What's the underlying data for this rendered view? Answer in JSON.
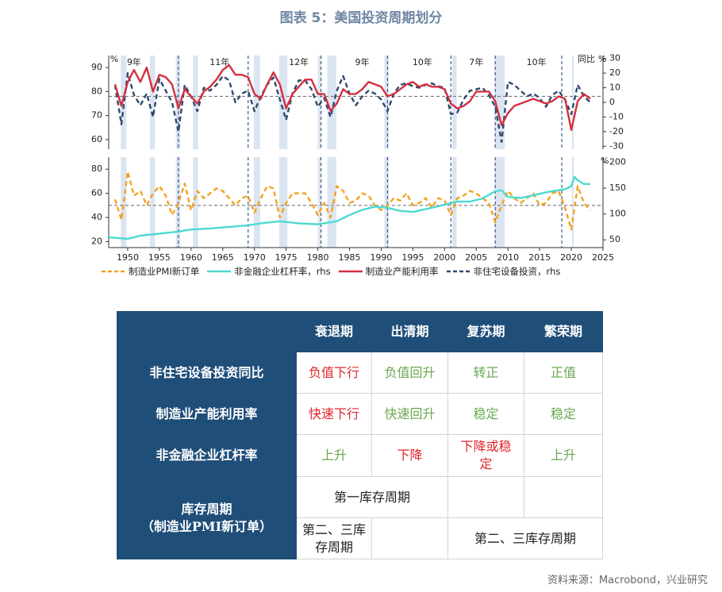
{
  "figure": {
    "title": "图表 5：美国投资周期划分",
    "source": "资料来源：Macrobond，兴业研究"
  },
  "legend": [
    {
      "label": "制造业PMI新订单",
      "color": "#f4a21d",
      "style": "dashed"
    },
    {
      "label": "非金融企业杠杆率，rhs",
      "color": "#4dd9d0",
      "style": "solid"
    },
    {
      "label": "制造业产能利用率",
      "color": "#d33040",
      "style": "solid"
    },
    {
      "label": "非住宅设备投资，rhs",
      "color": "#2e4a6e",
      "style": "dashed"
    }
  ],
  "chart_data": [
    {
      "type": "line",
      "panel": "top",
      "left_unit": "%",
      "right_unit": "%",
      "right_unit_label": "同比",
      "ylim": [
        56,
        95
      ],
      "y2lim": [
        -32,
        32
      ],
      "yticks": [
        60,
        70,
        80,
        90
      ],
      "y2ticks": [
        -30,
        -20,
        -10,
        0,
        10,
        20,
        30
      ],
      "reference_line": 78,
      "cycle_labels": [
        {
          "x": 1951,
          "text": "9年"
        },
        {
          "x": 1964.5,
          "text": "11年"
        },
        {
          "x": 1977,
          "text": "12年"
        },
        {
          "x": 1987,
          "text": "9年"
        },
        {
          "x": 1996.5,
          "text": "10年"
        },
        {
          "x": 2005,
          "text": "7年"
        },
        {
          "x": 2014.5,
          "text": "10年"
        }
      ],
      "cycle_boundaries": [
        1958,
        1969,
        1980.5,
        1991,
        2001,
        2008,
        2018.5
      ],
      "recessions": [
        [
          1948.9,
          1949.8
        ],
        [
          1953.5,
          1954.3
        ],
        [
          1957.6,
          1958.3
        ],
        [
          1960.3,
          1961.1
        ],
        [
          1969.9,
          1970.9
        ],
        [
          1973.9,
          1975.2
        ],
        [
          1980.0,
          1980.5
        ],
        [
          1981.5,
          1982.9
        ],
        [
          1990.5,
          1991.2
        ],
        [
          2001.2,
          2001.9
        ],
        [
          2007.9,
          2009.5
        ],
        [
          2020.1,
          2020.4
        ]
      ],
      "series": [
        {
          "name": "制造业产能利用率",
          "axis": "left",
          "color": "#d33040",
          "x": [
            1948,
            1949,
            1950,
            1951,
            1952,
            1953,
            1954,
            1955,
            1956,
            1957,
            1958,
            1959,
            1960,
            1961,
            1962,
            1963,
            1964,
            1965,
            1966,
            1967,
            1968,
            1969,
            1970,
            1971,
            1972,
            1973,
            1974,
            1975,
            1976,
            1977,
            1978,
            1979,
            1980,
            1981,
            1982,
            1983,
            1984,
            1985,
            1986,
            1987,
            1988,
            1989,
            1990,
            1991,
            1992,
            1993,
            1994,
            1995,
            1996,
            1997,
            1998,
            1999,
            2000,
            2001,
            2002,
            2003,
            2004,
            2005,
            2006,
            2007,
            2008,
            2009,
            2010,
            2011,
            2012,
            2013,
            2014,
            2015,
            2016,
            2017,
            2018,
            2019,
            2020,
            2021,
            2022,
            2023
          ],
          "y": [
            83,
            74,
            84,
            89,
            84,
            90,
            80,
            87,
            86,
            83,
            73,
            81,
            78,
            75,
            80,
            82,
            85,
            89,
            91,
            87,
            87,
            86,
            79,
            77,
            83,
            88,
            83,
            73,
            79,
            82,
            85,
            85,
            79,
            79,
            72,
            75,
            81,
            79,
            79,
            81,
            84,
            83,
            82,
            78,
            79,
            81,
            83,
            84,
            82,
            83,
            82,
            82,
            81,
            75,
            73,
            74,
            76,
            80,
            80,
            80,
            76,
            66,
            71,
            74,
            75,
            76,
            77,
            76,
            75,
            76,
            78,
            77,
            64,
            76,
            79,
            77
          ]
        },
        {
          "name": "非住宅设备投资",
          "axis": "right",
          "color": "#2e4a6e",
          "x": [
            1948,
            1949,
            1950,
            1951,
            1952,
            1953,
            1954,
            1955,
            1956,
            1957,
            1958,
            1959,
            1960,
            1961,
            1962,
            1963,
            1964,
            1965,
            1966,
            1967,
            1968,
            1969,
            1970,
            1971,
            1972,
            1973,
            1974,
            1975,
            1976,
            1977,
            1978,
            1979,
            1980,
            1981,
            1982,
            1983,
            1984,
            1985,
            1986,
            1987,
            1988,
            1989,
            1990,
            1991,
            1992,
            1993,
            1994,
            1995,
            1996,
            1997,
            1998,
            1999,
            2000,
            2001,
            2002,
            2003,
            2004,
            2005,
            2006,
            2007,
            2008,
            2009,
            2010,
            2011,
            2012,
            2013,
            2014,
            2015,
            2016,
            2017,
            2018,
            2019,
            2020,
            2021,
            2022,
            2023
          ],
          "y": [
            12,
            -15,
            20,
            5,
            -2,
            6,
            -10,
            16,
            8,
            0,
            -20,
            12,
            4,
            -6,
            10,
            8,
            12,
            18,
            15,
            0,
            6,
            8,
            -6,
            4,
            12,
            17,
            2,
            -12,
            6,
            15,
            15,
            9,
            -3,
            3,
            -10,
            8,
            18,
            6,
            -2,
            4,
            8,
            6,
            2,
            -6,
            6,
            12,
            13,
            11,
            10,
            12,
            13,
            11,
            10,
            -8,
            -7,
            2,
            8,
            9,
            10,
            5,
            -3,
            -27,
            14,
            12,
            8,
            4,
            6,
            3,
            -3,
            5,
            8,
            2,
            -8,
            12,
            4,
            0
          ]
        }
      ]
    },
    {
      "type": "line",
      "panel": "bottom",
      "left_unit": "",
      "right_unit": "%",
      "ylim": [
        15,
        90
      ],
      "y2lim": [
        35,
        210
      ],
      "yticks": [
        20,
        40,
        60,
        80
      ],
      "y2ticks": [
        50,
        100,
        150,
        200
      ],
      "reference_line": 50,
      "xlim": [
        1947,
        2025
      ],
      "xticks": [
        1950,
        1955,
        1960,
        1965,
        1970,
        1975,
        1980,
        1985,
        1990,
        1995,
        2000,
        2005,
        2010,
        2015,
        2020,
        2025
      ],
      "series": [
        {
          "name": "制造业PMI新订单",
          "axis": "left",
          "color": "#f4a21d",
          "x": [
            1948,
            1949,
            1950,
            1951,
            1952,
            1953,
            1954,
            1955,
            1956,
            1957,
            1958,
            1959,
            1960,
            1961,
            1962,
            1963,
            1964,
            1965,
            1966,
            1967,
            1968,
            1969,
            1970,
            1971,
            1972,
            1973,
            1974,
            1975,
            1976,
            1977,
            1978,
            1979,
            1980,
            1981,
            1982,
            1983,
            1984,
            1985,
            1986,
            1987,
            1988,
            1989,
            1990,
            1991,
            1992,
            1993,
            1994,
            1995,
            1996,
            1997,
            1998,
            1999,
            2000,
            2001,
            2002,
            2003,
            2004,
            2005,
            2006,
            2007,
            2008,
            2009,
            2010,
            2011,
            2012,
            2013,
            2014,
            2015,
            2016,
            2017,
            2018,
            2019,
            2020,
            2021,
            2022,
            2023
          ],
          "y": [
            55,
            38,
            78,
            58,
            62,
            50,
            60,
            66,
            58,
            42,
            52,
            68,
            46,
            62,
            56,
            60,
            64,
            62,
            56,
            50,
            56,
            58,
            44,
            56,
            66,
            64,
            40,
            52,
            60,
            60,
            60,
            52,
            42,
            52,
            40,
            66,
            62,
            52,
            54,
            60,
            58,
            50,
            46,
            50,
            56,
            54,
            60,
            50,
            52,
            56,
            48,
            56,
            54,
            42,
            56,
            58,
            62,
            60,
            56,
            52,
            36,
            50,
            62,
            56,
            52,
            56,
            60,
            50,
            52,
            60,
            62,
            48,
            30,
            66,
            52,
            46
          ]
        },
        {
          "name": "非金融企业杠杆率",
          "axis": "right",
          "color": "#4dd9d0",
          "x": [
            1947,
            1950,
            1952,
            1955,
            1958,
            1960,
            1963,
            1966,
            1969,
            1971,
            1974,
            1977,
            1980,
            1983,
            1985,
            1987,
            1989,
            1991,
            1993,
            1995,
            1998,
            2000,
            2002,
            2004,
            2006,
            2008,
            2009,
            2010,
            2012,
            2014,
            2016,
            2018,
            2019,
            2020,
            2020.5,
            2021,
            2022,
            2023
          ],
          "y": [
            55,
            52,
            58,
            62,
            66,
            70,
            72,
            75,
            78,
            82,
            86,
            82,
            80,
            86,
            98,
            108,
            114,
            112,
            106,
            104,
            112,
            118,
            124,
            124,
            130,
            144,
            146,
            133,
            131,
            136,
            142,
            146,
            148,
            154,
            172,
            165,
            158,
            158
          ]
        }
      ]
    }
  ],
  "table": {
    "headers": [
      "衰退期",
      "出清期",
      "复苏期",
      "繁荣期"
    ],
    "rows": [
      {
        "label": "非住宅设备投资同比",
        "cells": [
          "负值下行",
          "负值回升",
          "转正",
          "正值"
        ]
      },
      {
        "label": "制造业产能利用率",
        "cells": [
          "快速下行",
          "快速回升",
          "稳定",
          "稳定"
        ]
      },
      {
        "label": "非金融企业杠杆率",
        "cells": [
          "上升",
          "下降",
          "下降或稳定",
          "上升"
        ]
      }
    ],
    "inventory_label_line1": "库存周期",
    "inventory_label_line2": "（制造业PMI新订单）",
    "first_cycle": "第一库存周期",
    "second_third_a": "第二、三库存周期",
    "second_third_b": "第二、三库存周期"
  }
}
